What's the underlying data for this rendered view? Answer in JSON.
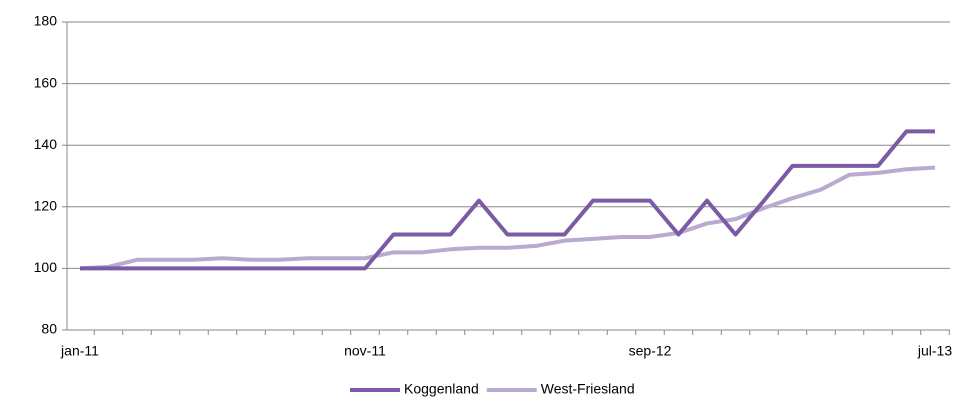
{
  "chart_data": {
    "type": "line",
    "categories": [
      "jan-11",
      null,
      null,
      null,
      null,
      null,
      null,
      null,
      null,
      null,
      "nov-11",
      null,
      null,
      null,
      null,
      null,
      null,
      null,
      null,
      null,
      "sep-12",
      null,
      null,
      null,
      null,
      null,
      null,
      null,
      null,
      null,
      "jul-13"
    ],
    "series": [
      {
        "name": "Koggenland",
        "color": "#7b5aa6",
        "values": [
          100,
          100,
          100,
          100,
          100,
          100,
          100,
          100,
          100,
          100,
          100,
          111,
          111,
          111,
          122,
          111,
          111,
          111,
          122,
          122,
          122,
          111,
          122,
          111,
          122,
          133.3,
          133.3,
          133.3,
          133.3,
          144.5,
          144.5
        ]
      },
      {
        "name": "West-Friesland",
        "color": "#b9aad0",
        "values": [
          100,
          100.5,
          102.8,
          102.8,
          102.8,
          103.3,
          102.8,
          102.8,
          103.3,
          103.3,
          103.3,
          105.2,
          105.2,
          106.2,
          106.7,
          106.7,
          107.3,
          109,
          109.6,
          110.2,
          110.2,
          111.5,
          114.6,
          116,
          119.6,
          122.8,
          125.6,
          130.4,
          131,
          132.2,
          132.7
        ]
      }
    ],
    "ylim": [
      80,
      180
    ],
    "yticks": [
      80,
      100,
      120,
      140,
      160,
      180
    ],
    "grid": true,
    "legend": "bottom"
  }
}
